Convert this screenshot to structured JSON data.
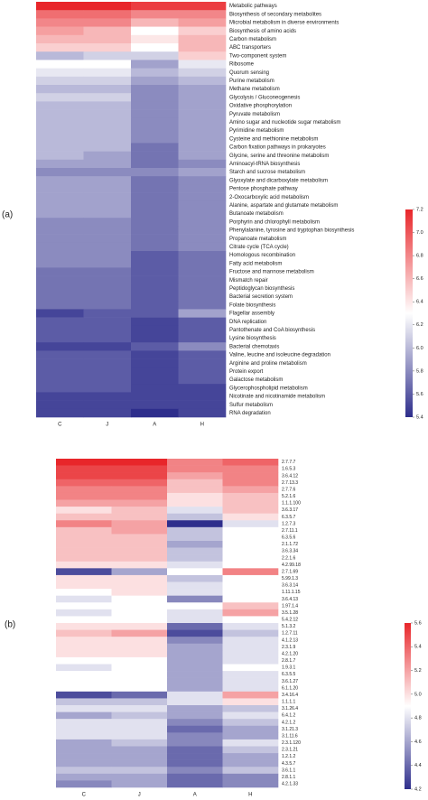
{
  "chart_data": [
    {
      "type": "heatmap",
      "label": "(a)",
      "columns": [
        "C",
        "J",
        "A",
        "H"
      ],
      "rows": [
        "Metabolic pathways",
        "Biosynthesis of secondary metabolites",
        "Microbial metabolism in diverse environments",
        "Biosynthesis of amino acids",
        "Carbon metabolism",
        "ABC transporters",
        "Two-component system",
        "Ribosome",
        "Quorum sensing",
        "Purine metabolism",
        "Methane metabolism",
        "Glycolysis / Gluconeogenesis",
        "Oxidative phosphorylation",
        "Pyruvate metabolism",
        "Amino sugar and nucleotide sugar metabolism",
        "Pyrimidine metabolism",
        "Cysteine and methionine metabolism",
        "Carbon fixation pathways in prokaryotes",
        "Glycine, serine and threonine metabolism",
        "Aminoacyl-tRNA biosynthesis",
        "Starch and sucrose metabolism",
        "Glyoxylate and dicarboxylate metabolism",
        "Pentose phosphate pathway",
        "2-Oxocarboxylic acid metabolism",
        "Alanine, aspartate and glutamate metabolism",
        "Butanoate metabolism",
        "Porphyrin and chlorophyll metabolism",
        "Phenylalanine, tyrosine and tryptophan biosynthesis",
        "Propanoate metabolism",
        "Citrate cycle (TCA cycle)",
        "Homologous recombination",
        "Fatty acid metabolism",
        "Fructose and mannose metabolism",
        "Mismatch repair",
        "Peptidoglycan biosynthesis",
        "Bacterial secretion system",
        "Folate biosynthesis",
        "Flagellar assembly",
        "DNA replication",
        "Pantothenate and CoA biosynthesis",
        "Lysine biosynthesis",
        "Bacterial chemotaxis",
        "Valine, leucine and isoleucine degradation",
        "Arginine and proline metabolism",
        "Protein export",
        "Galactose metabolism",
        "Glycerophospholipid metabolism",
        "Nicotinate and nicotinamide metabolism",
        "Sulfur metabolism",
        "RNA degradation"
      ],
      "values": [
        [
          7.2,
          7.2,
          7.1,
          7.1
        ],
        [
          6.9,
          6.9,
          6.8,
          6.8
        ],
        [
          6.8,
          6.8,
          6.6,
          6.7
        ],
        [
          6.7,
          6.6,
          6.3,
          6.5
        ],
        [
          6.6,
          6.6,
          6.4,
          6.6
        ],
        [
          6.5,
          6.5,
          6.3,
          6.6
        ],
        [
          6.0,
          6.1,
          6.1,
          6.5
        ],
        [
          6.3,
          6.3,
          5.9,
          6.2
        ],
        [
          6.2,
          6.2,
          6.0,
          6.1
        ],
        [
          6.1,
          6.1,
          5.9,
          6.0
        ],
        [
          6.0,
          6.0,
          5.8,
          5.9
        ],
        [
          6.1,
          6.1,
          5.8,
          5.9
        ],
        [
          6.0,
          6.0,
          5.8,
          5.9
        ],
        [
          6.0,
          6.0,
          5.8,
          5.9
        ],
        [
          6.0,
          6.0,
          5.8,
          5.9
        ],
        [
          6.0,
          6.0,
          5.8,
          5.9
        ],
        [
          6.0,
          6.0,
          5.8,
          5.9
        ],
        [
          6.0,
          6.0,
          5.7,
          5.9
        ],
        [
          6.0,
          5.9,
          5.7,
          5.9
        ],
        [
          5.9,
          5.9,
          5.7,
          5.8
        ],
        [
          5.8,
          5.8,
          5.8,
          5.9
        ],
        [
          5.9,
          5.9,
          5.7,
          5.8
        ],
        [
          5.9,
          5.9,
          5.7,
          5.8
        ],
        [
          5.9,
          5.9,
          5.7,
          5.8
        ],
        [
          5.9,
          5.9,
          5.7,
          5.8
        ],
        [
          5.9,
          5.9,
          5.7,
          5.8
        ],
        [
          5.8,
          5.8,
          5.7,
          5.8
        ],
        [
          5.8,
          5.8,
          5.7,
          5.8
        ],
        [
          5.8,
          5.8,
          5.7,
          5.8
        ],
        [
          5.8,
          5.8,
          5.7,
          5.8
        ],
        [
          5.8,
          5.8,
          5.6,
          5.7
        ],
        [
          5.8,
          5.8,
          5.6,
          5.7
        ],
        [
          5.7,
          5.7,
          5.6,
          5.7
        ],
        [
          5.7,
          5.7,
          5.6,
          5.7
        ],
        [
          5.7,
          5.7,
          5.6,
          5.7
        ],
        [
          5.7,
          5.7,
          5.6,
          5.7
        ],
        [
          5.7,
          5.7,
          5.6,
          5.7
        ],
        [
          5.5,
          5.6,
          5.6,
          5.9
        ],
        [
          5.6,
          5.6,
          5.5,
          5.6
        ],
        [
          5.6,
          5.6,
          5.5,
          5.6
        ],
        [
          5.6,
          5.6,
          5.5,
          5.6
        ],
        [
          5.5,
          5.5,
          5.6,
          5.8
        ],
        [
          5.6,
          5.6,
          5.5,
          5.6
        ],
        [
          5.6,
          5.6,
          5.5,
          5.6
        ],
        [
          5.6,
          5.6,
          5.5,
          5.6
        ],
        [
          5.6,
          5.6,
          5.5,
          5.6
        ],
        [
          5.6,
          5.6,
          5.5,
          5.5
        ],
        [
          5.5,
          5.5,
          5.5,
          5.5
        ],
        [
          5.5,
          5.5,
          5.5,
          5.5
        ],
        [
          5.5,
          5.5,
          5.4,
          5.5
        ]
      ],
      "zlim": [
        5.4,
        7.2
      ],
      "zticks": [
        5.4,
        5.6,
        5.8,
        {
          "value": 6,
          "label": "6.0"
        },
        6.2,
        6.4,
        6.6,
        6.8,
        {
          "value": 7,
          "label": "7.0"
        },
        7.2
      ],
      "colors": [
        "#2e2e8c",
        "#ffffff",
        "#e8262a"
      ]
    },
    {
      "type": "heatmap",
      "label": "(b)",
      "columns": [
        "C",
        "J",
        "A",
        "H"
      ],
      "rows": [
        "2.7.7.7",
        "1.6.5.3",
        "3.6.4.12",
        "2.7.13.3",
        "2.7.7.6",
        "5.2.1.6",
        "1.1.1.100",
        "3.6.3.17",
        "6.3.5.7",
        "1.2.7.3",
        "2.7.11.1",
        "6.3.5.6",
        "2.1.1.72",
        "3.6.3.34",
        "2.2.1.6",
        "4.2.99.18",
        "2.7.1.69",
        "5.99.1.3",
        "3.6.3.14",
        "1.11.1.15",
        "3.6.4.13",
        "1.97.1.4",
        "3.5.1.28",
        "5.4.2.12",
        "5.1.3.2",
        "1.2.7.11",
        "4.1.2.13",
        "2.3.1.9",
        "4.2.1.20",
        "2.8.1.7",
        "1.9.3.1",
        "6.3.5.5",
        "3.6.1.27",
        "6.1.1.20",
        "3.4.16.4",
        "1.1.1.1",
        "3.1.26.4",
        "6.4.1.2",
        "4.2.1.2",
        "3.1.21.3",
        "3.1.11.6",
        "2.3.1.120",
        "2.3.1.21",
        "1.2.1.2",
        "4.3.5.7",
        "3.6.1.1",
        "2.8.1.1",
        "4.2.1.33"
      ],
      "values": [
        [
          5.6,
          5.6,
          5.3,
          5.4
        ],
        [
          5.5,
          5.5,
          5.3,
          5.3
        ],
        [
          5.5,
          5.5,
          5.2,
          5.3
        ],
        [
          5.4,
          5.4,
          5.1,
          5.3
        ],
        [
          5.3,
          5.3,
          5.1,
          5.2
        ],
        [
          5.3,
          5.3,
          5.0,
          5.1
        ],
        [
          5.2,
          5.2,
          5.0,
          5.1
        ],
        [
          5.0,
          5.1,
          4.8,
          5.1
        ],
        [
          5.1,
          5.1,
          4.7,
          5.0
        ],
        [
          5.3,
          5.2,
          4.2,
          4.8
        ],
        [
          5.1,
          5.2,
          4.7,
          4.9
        ],
        [
          5.1,
          5.1,
          4.7,
          4.9
        ],
        [
          5.1,
          5.1,
          4.6,
          4.9
        ],
        [
          5.1,
          5.1,
          4.7,
          4.9
        ],
        [
          5.1,
          5.1,
          4.7,
          4.9
        ],
        [
          5.0,
          5.0,
          4.8,
          4.9
        ],
        [
          4.3,
          4.6,
          4.9,
          5.3
        ],
        [
          5.0,
          5.0,
          4.7,
          4.9
        ],
        [
          5.0,
          5.0,
          4.8,
          4.9
        ],
        [
          4.9,
          5.0,
          4.8,
          4.9
        ],
        [
          4.8,
          4.9,
          4.5,
          4.9
        ],
        [
          4.9,
          4.9,
          4.9,
          5.1
        ],
        [
          4.8,
          4.9,
          4.8,
          5.2
        ],
        [
          4.9,
          4.9,
          4.8,
          4.9
        ],
        [
          5.0,
          5.0,
          4.4,
          4.8
        ],
        [
          5.1,
          5.2,
          4.3,
          4.7
        ],
        [
          5.0,
          5.0,
          4.5,
          4.8
        ],
        [
          5.0,
          5.0,
          4.6,
          4.8
        ],
        [
          5.0,
          5.0,
          4.6,
          4.8
        ],
        [
          4.9,
          4.9,
          4.6,
          4.8
        ],
        [
          4.8,
          4.9,
          4.6,
          4.9
        ],
        [
          4.9,
          4.9,
          4.6,
          4.8
        ],
        [
          4.9,
          4.9,
          4.6,
          4.8
        ],
        [
          4.9,
          4.9,
          4.6,
          4.8
        ],
        [
          4.3,
          4.4,
          4.8,
          5.2
        ],
        [
          4.7,
          4.7,
          4.8,
          5.0
        ],
        [
          4.8,
          4.8,
          4.6,
          4.7
        ],
        [
          4.6,
          4.7,
          4.6,
          4.8
        ],
        [
          4.8,
          4.8,
          4.5,
          4.7
        ],
        [
          4.8,
          4.8,
          4.4,
          4.6
        ],
        [
          4.8,
          4.8,
          4.5,
          4.6
        ],
        [
          4.6,
          4.7,
          4.5,
          4.8
        ],
        [
          4.6,
          4.6,
          4.4,
          4.7
        ],
        [
          4.6,
          4.6,
          4.4,
          4.6
        ],
        [
          4.6,
          4.6,
          4.4,
          4.6
        ],
        [
          4.7,
          4.7,
          4.5,
          4.7
        ],
        [
          4.6,
          4.6,
          4.4,
          4.5
        ],
        [
          4.5,
          4.6,
          4.4,
          4.5
        ]
      ],
      "zlim": [
        4.2,
        5.6
      ],
      "zticks": [
        4.2,
        4.4,
        4.6,
        4.8,
        {
          "value": 5,
          "label": "5.0"
        },
        5.2,
        5.4,
        5.6
      ],
      "colors": [
        "#2e2e8c",
        "#ffffff",
        "#e8262a"
      ]
    }
  ]
}
